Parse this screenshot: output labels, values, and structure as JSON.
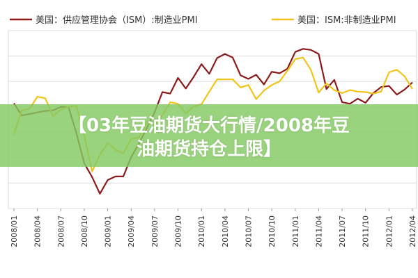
{
  "overlay": {
    "title_line1": "【03年豆油期货大行情/2008年豆",
    "title_line2": "油期货持仓上限】"
  },
  "chart_data": {
    "type": "line",
    "title": "",
    "xlabel": "",
    "ylabel": "",
    "grid": true,
    "legend_position": "top",
    "ylim": [
      30,
      65
    ],
    "tick_labels": [
      "2008/01",
      "2008/04",
      "2008/07",
      "2008/10",
      "2009/01",
      "2009/04",
      "2009/07",
      "2009/10",
      "2010/01",
      "2010/04",
      "2010/07",
      "2010/10",
      "2011/01",
      "2011/04",
      "2011/07",
      "2011/10",
      "2012/01",
      "2012/04"
    ],
    "x": [
      "2008/01",
      "2008/02",
      "2008/03",
      "2008/04",
      "2008/05",
      "2008/06",
      "2008/07",
      "2008/08",
      "2008/09",
      "2008/10",
      "2008/11",
      "2008/12",
      "2009/01",
      "2009/02",
      "2009/03",
      "2009/04",
      "2009/05",
      "2009/06",
      "2009/07",
      "2009/08",
      "2009/09",
      "2009/10",
      "2009/11",
      "2009/12",
      "2010/01",
      "2010/02",
      "2010/03",
      "2010/04",
      "2010/05",
      "2010/06",
      "2010/07",
      "2010/08",
      "2010/09",
      "2010/10",
      "2010/11",
      "2010/12",
      "2011/01",
      "2011/02",
      "2011/03",
      "2011/04",
      "2011/05",
      "2011/06",
      "2011/07",
      "2011/08",
      "2011/09",
      "2011/10",
      "2011/11",
      "2011/12",
      "2012/01",
      "2012/02",
      "2012/03",
      "2012/04"
    ],
    "series": [
      {
        "name": "美国：供应管理协会（ISM）:制造业PMI",
        "color": "#8b1a1a",
        "values": [
          50.7,
          48.3,
          48.6,
          48.9,
          49.2,
          49.3,
          50.0,
          49.9,
          44.8,
          38.9,
          36.2,
          32.9,
          35.6,
          36.3,
          36.3,
          40.1,
          42.8,
          45.8,
          48.9,
          52.9,
          52.6,
          55.7,
          53.6,
          55.9,
          58.4,
          56.5,
          59.6,
          60.4,
          59.7,
          56.2,
          55.5,
          56.3,
          54.4,
          56.9,
          56.6,
          57.5,
          60.8,
          61.4,
          61.2,
          60.4,
          53.5,
          55.3,
          50.9,
          50.6,
          51.6,
          50.8,
          52.7,
          53.9,
          54.1,
          52.4,
          53.4,
          54.8
        ]
      },
      {
        "name": "美国：ISM:非制造业PMI",
        "color": "#f0c419",
        "values": [
          44.6,
          49.3,
          49.6,
          52.0,
          51.7,
          48.2,
          49.5,
          50.0,
          50.2,
          44.4,
          37.3,
          40.6,
          42.9,
          41.6,
          40.8,
          43.7,
          44.0,
          47.0,
          46.4,
          48.4,
          50.9,
          50.6,
          48.7,
          50.1,
          50.5,
          53.0,
          55.4,
          55.4,
          55.4,
          53.8,
          54.3,
          51.5,
          53.2,
          54.3,
          55.0,
          57.1,
          59.4,
          59.7,
          57.3,
          52.8,
          54.6,
          53.3,
          52.7,
          53.3,
          53.0,
          52.9,
          52.6,
          53.0,
          56.8,
          57.3,
          56.0,
          53.5
        ]
      }
    ]
  }
}
